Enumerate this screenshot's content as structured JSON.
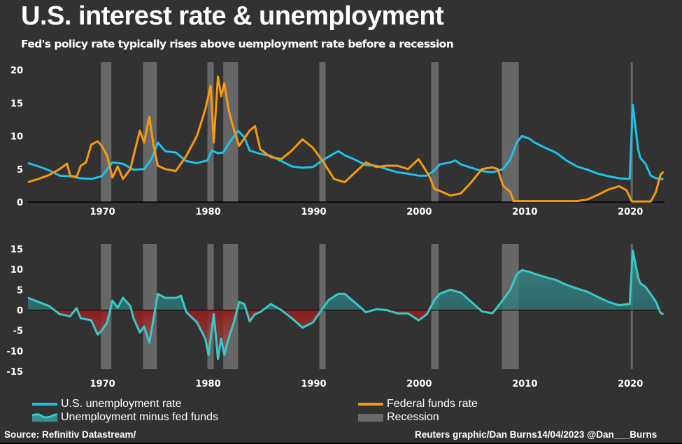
{
  "header": {
    "title": "U.S. interest rate & unemployment",
    "subtitle": "Fed's policy rate typically rises above uemployment rate before a recession"
  },
  "colors": {
    "background": "#323232",
    "unemployment": "#1fc2ea",
    "fed_funds": "#f59a12",
    "spread_line": "#39c9c9",
    "spread_fill_pos": "#3b8f8f",
    "spread_fill_neg": "#a32828",
    "recession": "#6a6a6a"
  },
  "legend": {
    "unemployment": "U.S. unemployment rate",
    "spread": "Unemployment minus fed funds",
    "fed_funds": "Federal funds rate",
    "recession": "Recession"
  },
  "footer": {
    "source": "Source: Refinitiv Datastream/",
    "credit": "Reuters graphic/Dan Burns14/04/2023 @Dan___Burns"
  },
  "chart_data": [
    {
      "type": "line",
      "title": "U.S. interest rate & unemployment",
      "xlabel": "",
      "ylabel": "",
      "xlim": [
        1963,
        2023.3
      ],
      "ylim": [
        0,
        20
      ],
      "yticks": [
        0,
        5,
        10,
        15,
        20
      ],
      "xticks": [
        1970,
        1980,
        1990,
        2000,
        2010,
        2020
      ],
      "grid": false,
      "recessions": [
        [
          1969.9,
          1970.9
        ],
        [
          1973.9,
          1975.2
        ],
        [
          1980.0,
          1980.6
        ],
        [
          1981.5,
          1982.9
        ],
        [
          1990.6,
          1991.2
        ],
        [
          2001.2,
          2001.9
        ],
        [
          2007.9,
          2009.5
        ],
        [
          2020.1,
          2020.3
        ]
      ],
      "series": [
        {
          "name": "U.S. unemployment rate",
          "points": [
            [
              1963,
              5.9
            ],
            [
              1964,
              5.4
            ],
            [
              1965,
              4.8
            ],
            [
              1966,
              4.0
            ],
            [
              1967,
              3.9
            ],
            [
              1968,
              3.6
            ],
            [
              1969,
              3.5
            ],
            [
              1970,
              3.9
            ],
            [
              1970.5,
              5.0
            ],
            [
              1971,
              6.0
            ],
            [
              1972,
              5.8
            ],
            [
              1973,
              4.9
            ],
            [
              1974,
              5.0
            ],
            [
              1974.7,
              6.5
            ],
            [
              1975.3,
              9.0
            ],
            [
              1976,
              7.7
            ],
            [
              1977,
              7.5
            ],
            [
              1978,
              6.2
            ],
            [
              1979,
              5.9
            ],
            [
              1980,
              6.3
            ],
            [
              1980.4,
              7.8
            ],
            [
              1981,
              7.4
            ],
            [
              1981.5,
              7.5
            ],
            [
              1982,
              8.8
            ],
            [
              1982.9,
              10.8
            ],
            [
              1983.5,
              9.8
            ],
            [
              1984,
              7.8
            ],
            [
              1985,
              7.3
            ],
            [
              1986,
              7.0
            ],
            [
              1987,
              6.2
            ],
            [
              1988,
              5.4
            ],
            [
              1989,
              5.2
            ],
            [
              1990,
              5.3
            ],
            [
              1990.8,
              6.2
            ],
            [
              1991.5,
              6.9
            ],
            [
              1992.4,
              7.7
            ],
            [
              1993,
              7.1
            ],
            [
              1994,
              6.4
            ],
            [
              1995,
              5.6
            ],
            [
              1996,
              5.5
            ],
            [
              1997,
              5.0
            ],
            [
              1998,
              4.5
            ],
            [
              1999,
              4.3
            ],
            [
              2000,
              4.0
            ],
            [
              2000.8,
              4.0
            ],
            [
              2001.5,
              4.8
            ],
            [
              2002,
              5.7
            ],
            [
              2003,
              6.0
            ],
            [
              2003.5,
              6.3
            ],
            [
              2004,
              5.7
            ],
            [
              2005,
              5.2
            ],
            [
              2006,
              4.7
            ],
            [
              2007,
              4.5
            ],
            [
              2008,
              5.0
            ],
            [
              2008.7,
              6.5
            ],
            [
              2009.3,
              9.0
            ],
            [
              2009.8,
              10.0
            ],
            [
              2010.5,
              9.6
            ],
            [
              2011,
              9.0
            ],
            [
              2012,
              8.2
            ],
            [
              2013,
              7.5
            ],
            [
              2014,
              6.3
            ],
            [
              2015,
              5.4
            ],
            [
              2016,
              4.9
            ],
            [
              2017,
              4.3
            ],
            [
              2018,
              3.9
            ],
            [
              2019,
              3.6
            ],
            [
              2020,
              3.5
            ],
            [
              2020.3,
              14.7
            ],
            [
              2020.8,
              8.0
            ],
            [
              2021,
              6.7
            ],
            [
              2021.5,
              5.8
            ],
            [
              2022,
              4.0
            ],
            [
              2022.5,
              3.6
            ],
            [
              2023,
              3.5
            ],
            [
              2023.2,
              3.5
            ]
          ]
        },
        {
          "name": "Federal funds rate",
          "points": [
            [
              1963,
              3.0
            ],
            [
              1964,
              3.5
            ],
            [
              1965,
              4.1
            ],
            [
              1966,
              5.0
            ],
            [
              1966.7,
              5.8
            ],
            [
              1967,
              4.0
            ],
            [
              1967.6,
              3.8
            ],
            [
              1968,
              5.5
            ],
            [
              1968.5,
              6.0
            ],
            [
              1969,
              8.7
            ],
            [
              1969.6,
              9.2
            ],
            [
              1970,
              8.5
            ],
            [
              1970.5,
              7.0
            ],
            [
              1971,
              3.7
            ],
            [
              1971.5,
              5.4
            ],
            [
              1972,
              3.5
            ],
            [
              1972.7,
              5.0
            ],
            [
              1973,
              7.0
            ],
            [
              1973.6,
              10.8
            ],
            [
              1974,
              9.0
            ],
            [
              1974.5,
              12.9
            ],
            [
              1974.9,
              8.5
            ],
            [
              1975.3,
              5.5
            ],
            [
              1976,
              5.0
            ],
            [
              1977,
              4.7
            ],
            [
              1978,
              7.0
            ],
            [
              1979,
              10.0
            ],
            [
              1979.8,
              14.0
            ],
            [
              1980.3,
              17.6
            ],
            [
              1980.6,
              9.0
            ],
            [
              1981,
              19.0
            ],
            [
              1981.3,
              16.0
            ],
            [
              1981.6,
              18.0
            ],
            [
              1982,
              14.0
            ],
            [
              1982.5,
              11.0
            ],
            [
              1983,
              8.5
            ],
            [
              1984,
              10.8
            ],
            [
              1984.5,
              11.5
            ],
            [
              1985,
              8.0
            ],
            [
              1986,
              6.8
            ],
            [
              1987,
              6.5
            ],
            [
              1988,
              7.8
            ],
            [
              1989,
              9.5
            ],
            [
              1990,
              8.2
            ],
            [
              1991,
              6.0
            ],
            [
              1992,
              3.5
            ],
            [
              1993,
              3.0
            ],
            [
              1994,
              4.5
            ],
            [
              1995,
              6.0
            ],
            [
              1996,
              5.3
            ],
            [
              1997,
              5.5
            ],
            [
              1998,
              5.5
            ],
            [
              1999,
              5.0
            ],
            [
              2000,
              6.5
            ],
            [
              2001,
              4.0
            ],
            [
              2001.5,
              2.0
            ],
            [
              2002,
              1.7
            ],
            [
              2003,
              1.0
            ],
            [
              2004,
              1.3
            ],
            [
              2005,
              3.0
            ],
            [
              2006,
              5.0
            ],
            [
              2007,
              5.25
            ],
            [
              2007.5,
              5.0
            ],
            [
              2008,
              2.5
            ],
            [
              2008.7,
              1.5
            ],
            [
              2009,
              0.15
            ],
            [
              2015,
              0.15
            ],
            [
              2016,
              0.4
            ],
            [
              2017,
              1.1
            ],
            [
              2018,
              1.9
            ],
            [
              2019,
              2.4
            ],
            [
              2019.7,
              1.8
            ],
            [
              2020.2,
              0.1
            ],
            [
              2022,
              0.1
            ],
            [
              2022.5,
              1.6
            ],
            [
              2022.9,
              4.1
            ],
            [
              2023.2,
              4.6
            ]
          ]
        }
      ]
    },
    {
      "type": "area",
      "title": "Unemployment minus fed funds",
      "xlim": [
        1963,
        2023.3
      ],
      "ylim": [
        -15,
        15
      ],
      "yticks": [
        -15,
        -10,
        -5,
        0,
        5,
        10,
        15
      ],
      "xticks": [
        1970,
        1980,
        1990,
        2000,
        2010,
        2020
      ],
      "grid": false,
      "recessions": [
        [
          1969.9,
          1970.9
        ],
        [
          1973.9,
          1975.2
        ],
        [
          1980.0,
          1980.6
        ],
        [
          1981.5,
          1982.9
        ],
        [
          1990.6,
          1991.2
        ],
        [
          2001.2,
          2001.9
        ],
        [
          2007.9,
          2009.5
        ],
        [
          2020.1,
          2020.3
        ]
      ],
      "series": [
        {
          "name": "Unemployment minus fed funds",
          "points": [
            [
              1963,
              3.0
            ],
            [
              1964,
              2.0
            ],
            [
              1965,
              1.0
            ],
            [
              1966,
              -1.0
            ],
            [
              1967,
              -1.5
            ],
            [
              1967.6,
              0.5
            ],
            [
              1968,
              -2.0
            ],
            [
              1969,
              -2.5
            ],
            [
              1969.6,
              -6.0
            ],
            [
              1970,
              -5.0
            ],
            [
              1970.5,
              -3.0
            ],
            [
              1971,
              2.3
            ],
            [
              1971.5,
              0.6
            ],
            [
              1972,
              3.0
            ],
            [
              1972.7,
              1.0
            ],
            [
              1973,
              -2.0
            ],
            [
              1973.6,
              -5.5
            ],
            [
              1974,
              -4.0
            ],
            [
              1974.5,
              -8.0
            ],
            [
              1974.9,
              -2.0
            ],
            [
              1975.3,
              4.0
            ],
            [
              1976,
              3.0
            ],
            [
              1977,
              3.0
            ],
            [
              1977.5,
              3.5
            ],
            [
              1978,
              -0.5
            ],
            [
              1979,
              -3.0
            ],
            [
              1979.8,
              -7.0
            ],
            [
              1980.1,
              -11.0
            ],
            [
              1980.6,
              -1.0
            ],
            [
              1981,
              -12.0
            ],
            [
              1981.3,
              -7.0
            ],
            [
              1981.6,
              -11.0
            ],
            [
              1982,
              -7.0
            ],
            [
              1982.5,
              -3.0
            ],
            [
              1983,
              2.0
            ],
            [
              1983.5,
              1.5
            ],
            [
              1984,
              -2.8
            ],
            [
              1984.5,
              -1.0
            ],
            [
              1985,
              -0.5
            ],
            [
              1986,
              1.5
            ],
            [
              1987,
              0.0
            ],
            [
              1988,
              -2.0
            ],
            [
              1989,
              -4.3
            ],
            [
              1990,
              -3.0
            ],
            [
              1990.8,
              0.0
            ],
            [
              1991.5,
              2.5
            ],
            [
              1992.4,
              4.0
            ],
            [
              1993,
              4.0
            ],
            [
              1994,
              1.8
            ],
            [
              1995,
              -0.5
            ],
            [
              1996,
              0.2
            ],
            [
              1997,
              0.0
            ],
            [
              1998,
              -0.8
            ],
            [
              1999,
              -0.8
            ],
            [
              2000,
              -2.5
            ],
            [
              2000.8,
              -1.0
            ],
            [
              2001.5,
              2.5
            ],
            [
              2002,
              4.0
            ],
            [
              2003,
              5.0
            ],
            [
              2004,
              4.3
            ],
            [
              2005,
              2.0
            ],
            [
              2006,
              -0.3
            ],
            [
              2007,
              -0.8
            ],
            [
              2008,
              2.5
            ],
            [
              2008.7,
              5.0
            ],
            [
              2009.3,
              8.8
            ],
            [
              2009.8,
              9.8
            ],
            [
              2010.5,
              9.4
            ],
            [
              2011,
              8.9
            ],
            [
              2012,
              8.1
            ],
            [
              2013,
              7.4
            ],
            [
              2014,
              6.2
            ],
            [
              2015,
              5.3
            ],
            [
              2016,
              4.5
            ],
            [
              2017,
              3.2
            ],
            [
              2018,
              2.0
            ],
            [
              2019,
              1.2
            ],
            [
              2020,
              1.5
            ],
            [
              2020.3,
              14.6
            ],
            [
              2020.8,
              8.0
            ],
            [
              2021,
              6.6
            ],
            [
              2021.5,
              5.7
            ],
            [
              2022,
              3.9
            ],
            [
              2022.5,
              2.0
            ],
            [
              2022.9,
              -0.6
            ],
            [
              2023.2,
              -1.1
            ]
          ]
        }
      ]
    }
  ]
}
